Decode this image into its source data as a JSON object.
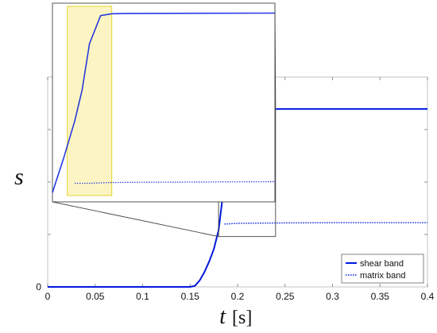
{
  "chart_data": {
    "type": "line",
    "xlabel": "t",
    "xunit": "[s]",
    "ylabel": "s",
    "xlim": [
      0,
      0.4
    ],
    "ylim": [
      0,
      1
    ],
    "x_ticks": [
      "0",
      "0.05",
      "0.1",
      "0.15",
      "0.2",
      "0.25",
      "0.3",
      "0.35",
      "0.4"
    ],
    "x_tick_values": [
      0,
      0.05,
      0.1,
      0.15,
      0.2,
      0.25,
      0.3,
      0.35,
      0.4
    ],
    "y_ticks": [
      "0"
    ],
    "y_tick_values": [
      0
    ],
    "grid": false,
    "legend_position": "bottom-right",
    "series": [
      {
        "name": "shear band",
        "color": "#0018e0",
        "style": "solid",
        "x": [
          0,
          0.15,
          0.155,
          0.16,
          0.165,
          0.17,
          0.175,
          0.18,
          0.183,
          0.186,
          0.188,
          0.19,
          0.193,
          0.196,
          0.2,
          0.25,
          0.3,
          0.35,
          0.4
        ],
        "y": [
          0,
          0,
          0.005,
          0.03,
          0.07,
          0.12,
          0.18,
          0.27,
          0.38,
          0.5,
          0.6,
          0.75,
          0.84,
          0.846,
          0.847,
          0.848,
          0.848,
          0.848,
          0.848
        ]
      },
      {
        "name": "matrix band",
        "color": "#0018e0",
        "style": "dotted",
        "x": [
          0.186,
          0.19,
          0.195,
          0.2,
          0.25,
          0.3,
          0.35,
          0.4
        ],
        "y": [
          0.3,
          0.3,
          0.302,
          0.303,
          0.305,
          0.306,
          0.306,
          0.306
        ]
      }
    ],
    "inset": {
      "source_xlim": [
        0.18,
        0.24
      ],
      "source_ylim": [
        0.24,
        0.88
      ],
      "highlight_xlim": [
        0.184,
        0.196
      ],
      "highlight_color": "#f6e97a"
    }
  }
}
